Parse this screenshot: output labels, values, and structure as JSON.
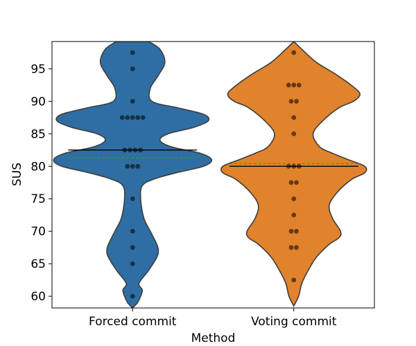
{
  "chart_data": {
    "type": "violin",
    "xlabel": "Method",
    "ylabel": "SUS",
    "ylim": [
      58.2,
      99.2
    ],
    "yticks": [
      60,
      65,
      70,
      75,
      80,
      85,
      90,
      95
    ],
    "categories": [
      "Forced commit",
      "Voting commit"
    ],
    "grid": false,
    "series": [
      {
        "name": "Forced commit",
        "color": "#2f6ea3",
        "median": 82.5,
        "mean": 81.3,
        "points": [
          97.5,
          95,
          90,
          87.5,
          87.5,
          87.5,
          87.5,
          87.5,
          82.5,
          82.5,
          82.5,
          82.5,
          80,
          80,
          80,
          75,
          70,
          67.5,
          65,
          60
        ],
        "violin_extent": [
          58.2,
          99.2
        ],
        "violin_profile": [
          [
            99.2,
            0.1
          ],
          [
            98,
            0.17
          ],
          [
            96,
            0.2
          ],
          [
            94,
            0.16
          ],
          [
            92,
            0.11
          ],
          [
            90,
            0.12
          ],
          [
            89,
            0.28
          ],
          [
            88,
            0.44
          ],
          [
            87,
            0.47
          ],
          [
            86,
            0.38
          ],
          [
            85,
            0.22
          ],
          [
            84,
            0.17
          ],
          [
            83,
            0.24
          ],
          [
            82,
            0.42
          ],
          [
            81,
            0.49
          ],
          [
            80,
            0.44
          ],
          [
            79,
            0.27
          ],
          [
            78,
            0.13
          ],
          [
            77,
            0.06
          ],
          [
            75,
            0.05
          ],
          [
            72,
            0.07
          ],
          [
            70,
            0.11
          ],
          [
            68,
            0.15
          ],
          [
            67,
            0.16
          ],
          [
            66,
            0.15
          ],
          [
            64,
            0.1
          ],
          [
            62,
            0.04
          ],
          [
            61,
            0.06
          ],
          [
            60,
            0.05
          ],
          [
            59,
            0.03
          ],
          [
            58.2,
            0.0
          ]
        ]
      },
      {
        "name": "Voting commit",
        "color": "#e1822d",
        "median": 80.0,
        "mean": 80.4,
        "points": [
          97.5,
          92.5,
          92.5,
          92.5,
          90,
          90,
          87.5,
          85,
          80,
          80,
          80,
          77.5,
          77.5,
          75,
          72.5,
          70,
          70,
          67.5,
          67.5,
          62.5
        ],
        "violin_extent": [
          58.5,
          99.2
        ],
        "violin_profile": [
          [
            99.2,
            0.0
          ],
          [
            98,
            0.05
          ],
          [
            96,
            0.14
          ],
          [
            94,
            0.27
          ],
          [
            92,
            0.38
          ],
          [
            91,
            0.41
          ],
          [
            90,
            0.37
          ],
          [
            89,
            0.28
          ],
          [
            87,
            0.18
          ],
          [
            85,
            0.12
          ],
          [
            83,
            0.16
          ],
          [
            82,
            0.24
          ],
          [
            81,
            0.34
          ],
          [
            80,
            0.44
          ],
          [
            79,
            0.44
          ],
          [
            78,
            0.36
          ],
          [
            76,
            0.27
          ],
          [
            74,
            0.22
          ],
          [
            72,
            0.24
          ],
          [
            70,
            0.29
          ],
          [
            69,
            0.28
          ],
          [
            68,
            0.22
          ],
          [
            66,
            0.14
          ],
          [
            64,
            0.09
          ],
          [
            62,
            0.05
          ],
          [
            60,
            0.03
          ],
          [
            58.5,
            0.0
          ]
        ]
      }
    ]
  }
}
